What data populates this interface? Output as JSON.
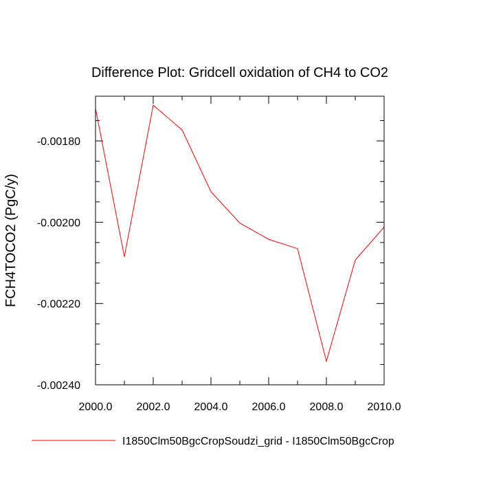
{
  "chart_data": {
    "type": "line",
    "title": "Difference Plot: Gridcell oxidation of CH4 to CO2",
    "ylabel": "FCH4TOCO2  (PgC/y)",
    "xlabel": "",
    "xlim": [
      2000,
      2010
    ],
    "ylim": [
      -0.0024,
      -0.00169
    ],
    "x_major_ticks": [
      2000,
      2002,
      2004,
      2006,
      2008,
      2010
    ],
    "x_tick_labels": [
      "2000.0",
      "2002.0",
      "2004.0",
      "2006.0",
      "2008.0",
      "2010.0"
    ],
    "x_minor_ticks": [
      2001,
      2003,
      2005,
      2007,
      2009
    ],
    "y_major_ticks": [
      -0.0018,
      -0.002,
      -0.0022,
      -0.0024
    ],
    "y_tick_labels": [
      "-0.00180",
      "-0.00200",
      "-0.00220",
      "-0.00240"
    ],
    "y_minor_ticks": [
      -0.00175,
      -0.00185,
      -0.0019,
      -0.00195,
      -0.00205,
      -0.0021,
      -0.00215,
      -0.00225,
      -0.0023,
      -0.00235
    ],
    "grid": false,
    "legend_position": "bottom",
    "series": [
      {
        "name": "I1850Clm50BgcCropSoudzi_grid - I1850Clm50BgcCrop",
        "color": "#ff0000",
        "x": [
          2000,
          2001,
          2002,
          2003,
          2004,
          2005,
          2006,
          2007,
          2008,
          2009,
          2010
        ],
        "y": [
          -0.00172,
          -0.002085,
          -0.001712,
          -0.001773,
          -0.001925,
          -0.002002,
          -0.002042,
          -0.002065,
          -0.002342,
          -0.002093,
          -0.002012
        ]
      }
    ]
  }
}
